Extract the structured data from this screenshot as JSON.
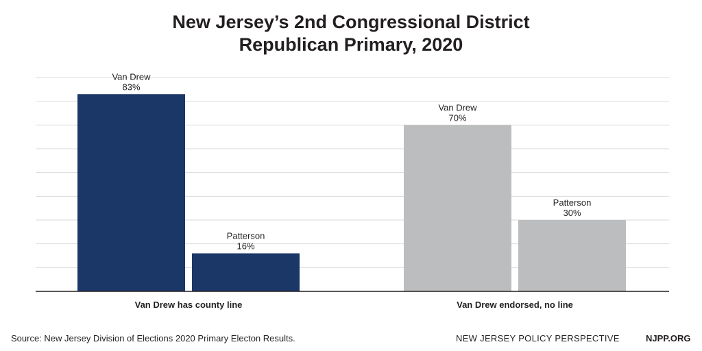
{
  "chart_data": {
    "type": "bar",
    "title": "New Jersey’s 2nd Congressional District",
    "subtitle": "Republican Primary, 2020",
    "categories": [
      "Van Drew has county line",
      "Van Drew endorsed, no line"
    ],
    "bars": [
      {
        "category": "Van Drew has county line",
        "name": "Van Drew",
        "value": 83,
        "label": "83%",
        "color": "#1b3768"
      },
      {
        "category": "Van Drew has county line",
        "name": "Patterson",
        "value": 16,
        "label": "16%",
        "color": "#1b3768"
      },
      {
        "category": "Van Drew endorsed, no line",
        "name": "Van Drew",
        "value": 70,
        "label": "70%",
        "color": "#bcbdbf"
      },
      {
        "category": "Van Drew endorsed, no line",
        "name": "Patterson",
        "value": 30,
        "label": "30%",
        "color": "#bcbdbf"
      }
    ],
    "ylim": [
      0,
      90
    ],
    "gridlines": true,
    "ytick_labels": false,
    "colors": {
      "county_line": "#1b3768",
      "no_line": "#bcbdbf",
      "grid": "#d9d9d9",
      "axis": "#231f20"
    }
  },
  "footer": {
    "source": "Source: New Jersey Division of Elections 2020 Primary Electon Results.",
    "publisher": "NEW JERSEY POLICY PERSPECTIVE",
    "site": "NJPP.ORG"
  }
}
